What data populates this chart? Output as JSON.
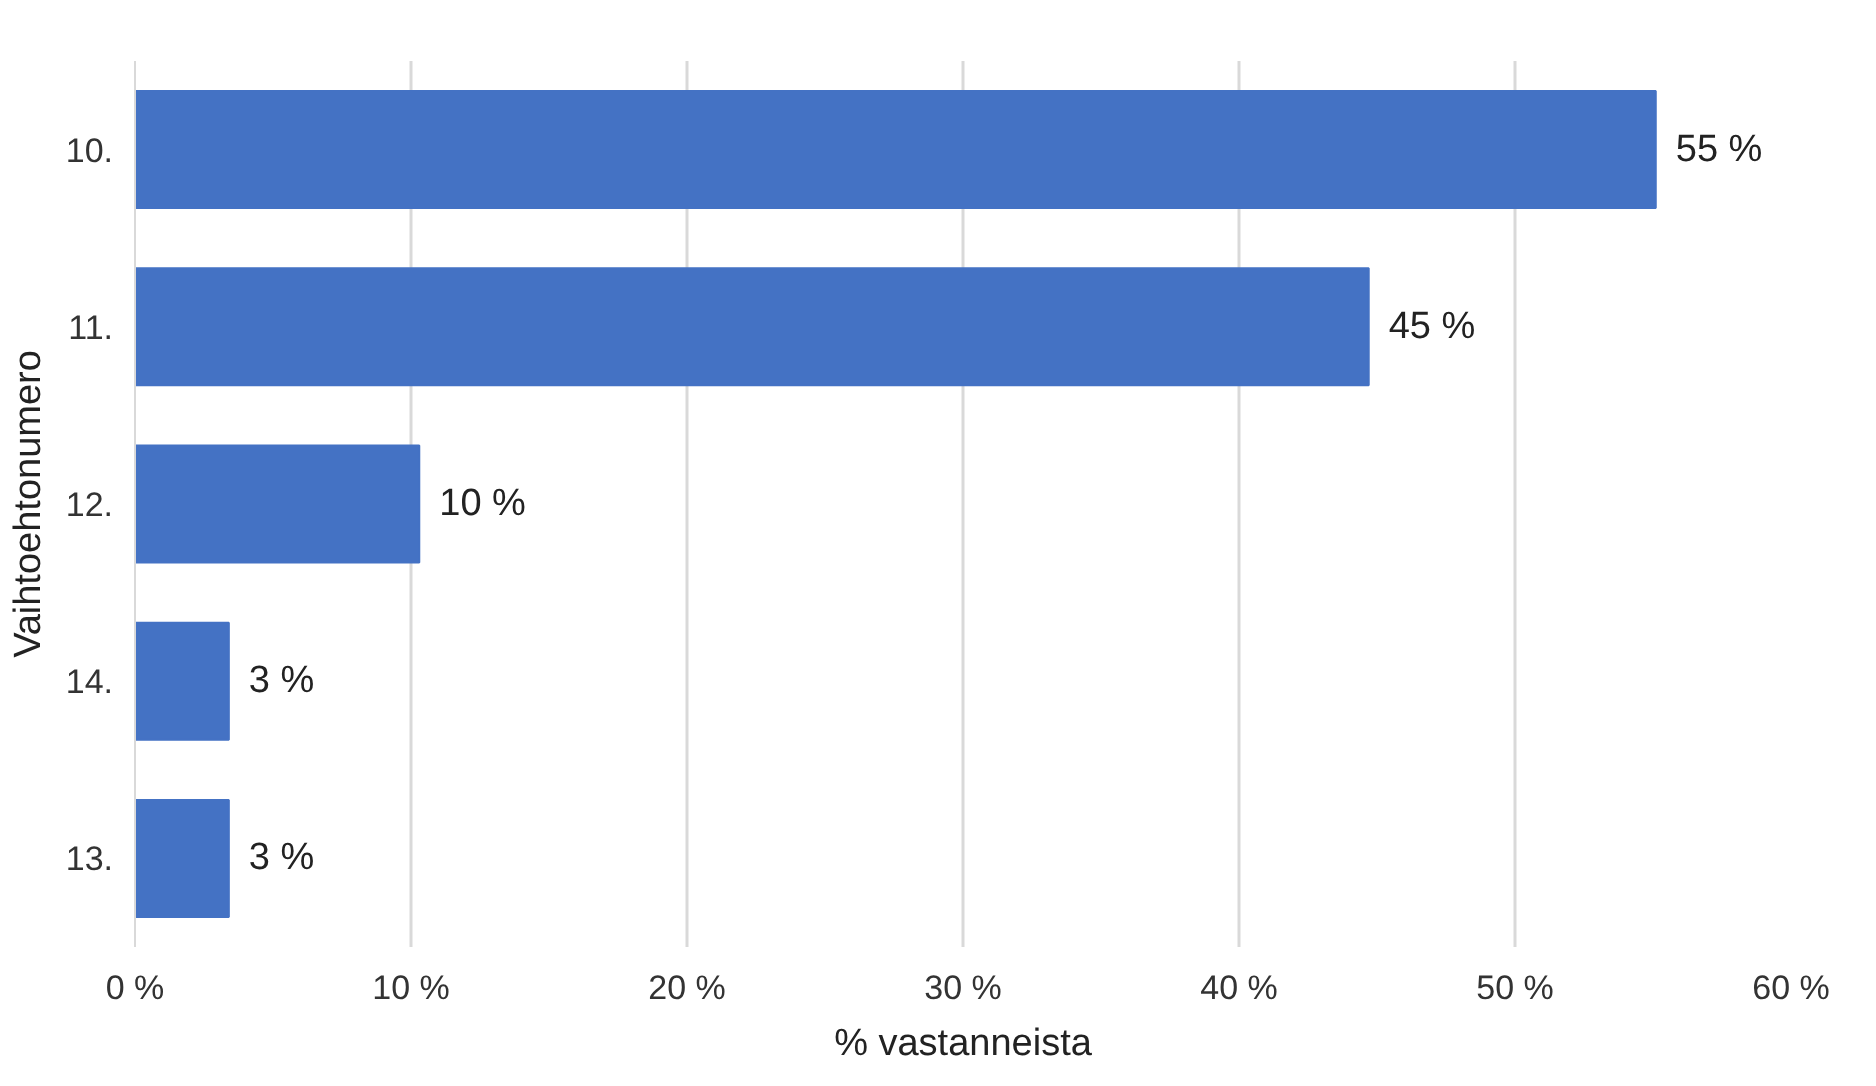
{
  "chart_data": {
    "type": "bar",
    "orientation": "horizontal",
    "xlabel": "% vastanneista",
    "ylabel": "Vaihtoehtonumero",
    "categories": [
      "10.",
      "11.",
      "12.",
      "14.",
      "13."
    ],
    "values": [
      55.1,
      44.7,
      10.3,
      3.4,
      3.4
    ],
    "value_labels": [
      "55 %",
      "45 %",
      "10 %",
      "3 %",
      "3 %"
    ],
    "color": "#4472c4",
    "xlim": [
      0,
      60
    ],
    "xticks": [
      {
        "value": 0,
        "label": "0 %"
      },
      {
        "value": 10,
        "label": "10 %"
      },
      {
        "value": 20,
        "label": "20 %"
      },
      {
        "value": 30,
        "label": "30 %"
      },
      {
        "value": 40,
        "label": "40 %"
      },
      {
        "value": 50,
        "label": "50 %"
      },
      {
        "value": 60,
        "label": "60 %"
      }
    ],
    "grid": "x"
  }
}
